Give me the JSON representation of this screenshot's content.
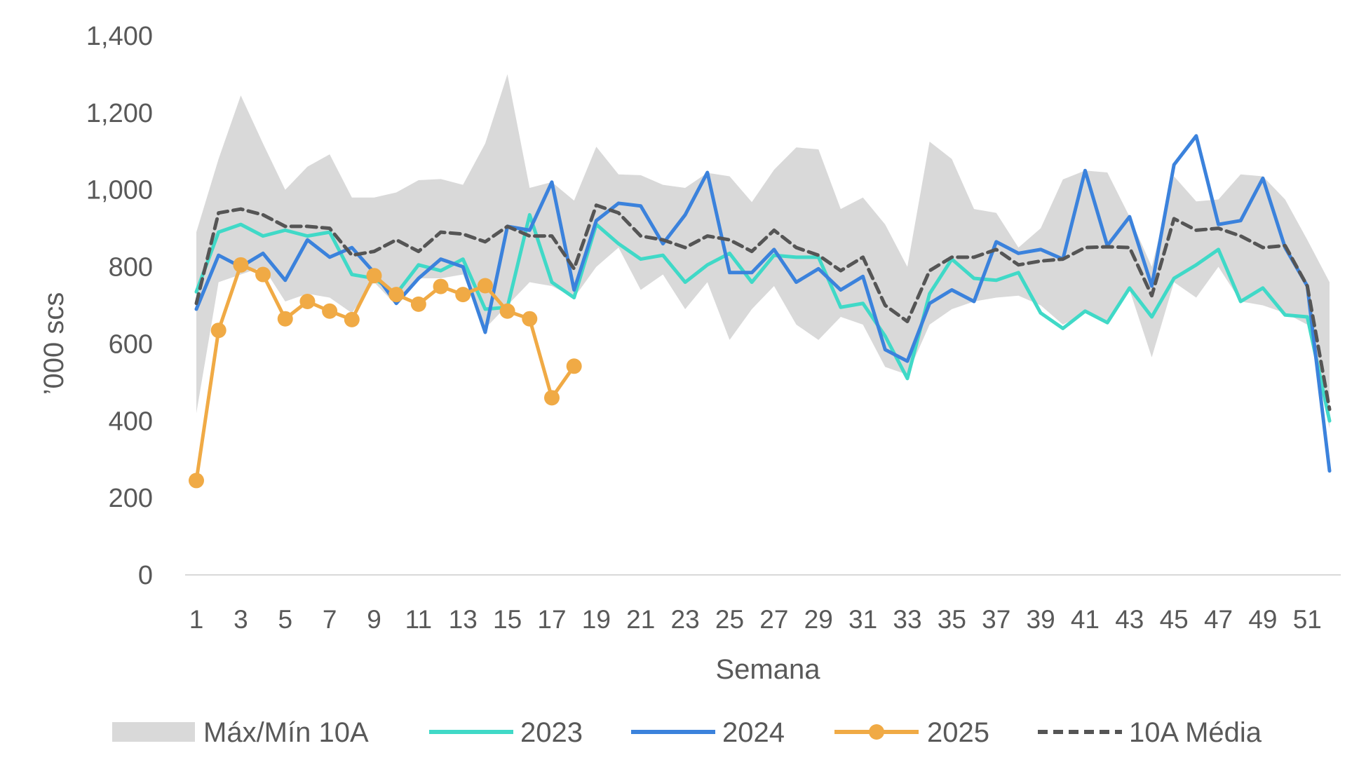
{
  "chart_data": {
    "type": "line",
    "xlabel": "Semana",
    "ylabel": "’000 scs",
    "ylim": [
      0,
      1400
    ],
    "yticks": [
      0,
      200,
      400,
      600,
      800,
      1000,
      1200,
      1400
    ],
    "ytick_labels": [
      "0",
      "200",
      "400",
      "600",
      "800",
      "1,000",
      "1,200",
      "1,400"
    ],
    "xlim": [
      1,
      52
    ],
    "xticks": [
      1,
      3,
      5,
      7,
      9,
      11,
      13,
      15,
      17,
      19,
      21,
      23,
      25,
      27,
      29,
      31,
      33,
      35,
      37,
      39,
      41,
      43,
      45,
      47,
      49,
      51
    ],
    "xtick_labels": [
      "1",
      "3",
      "5",
      "7",
      "9",
      "11",
      "13",
      "15",
      "17",
      "19",
      "21",
      "23",
      "25",
      "27",
      "29",
      "31",
      "33",
      "35",
      "37",
      "39",
      "41",
      "43",
      "45",
      "47",
      "49",
      "51"
    ],
    "grid": false,
    "legend_position": "bottom",
    "band": {
      "name": "Máx/Mín 10A",
      "color": "#d9d9d9",
      "max": [
        890,
        1080,
        1245,
        1120,
        1000,
        1060,
        1092,
        980,
        980,
        993,
        1025,
        1028,
        1013,
        1120,
        1300,
        1005,
        1020,
        972,
        1112,
        1040,
        1038,
        1013,
        1005,
        1044,
        1035,
        968,
        1052,
        1110,
        1105,
        950,
        980,
        910,
        800,
        1125,
        1080,
        950,
        940,
        850,
        900,
        1027,
        1050,
        1045,
        930,
        800,
        1035,
        970,
        975,
        1040,
        1035,
        975,
        870,
        760
      ],
      "min": [
        420,
        760,
        780,
        800,
        710,
        730,
        720,
        680,
        760,
        700,
        770,
        770,
        780,
        640,
        700,
        760,
        750,
        720,
        800,
        850,
        740,
        780,
        690,
        760,
        610,
        690,
        750,
        650,
        610,
        670,
        650,
        540,
        520,
        650,
        690,
        710,
        720,
        725,
        700,
        650,
        680,
        650,
        740,
        565,
        760,
        720,
        800,
        710,
        700,
        680,
        650,
        380
      ]
    },
    "series": [
      {
        "name": "2023",
        "color": "#40d9c7",
        "markers": false,
        "dashed": false,
        "values": [
          735,
          890,
          910,
          880,
          895,
          880,
          890,
          780,
          770,
          730,
          805,
          790,
          820,
          690,
          695,
          935,
          760,
          720,
          910,
          860,
          820,
          830,
          760,
          805,
          835,
          760,
          830,
          825,
          825,
          695,
          705,
          620,
          510,
          730,
          820,
          770,
          765,
          785,
          680,
          640,
          685,
          655,
          745,
          670,
          770,
          805,
          845,
          710,
          745,
          675,
          670,
          400
        ]
      },
      {
        "name": "2024",
        "color": "#3b82dc",
        "markers": false,
        "dashed": false,
        "values": [
          690,
          830,
          800,
          835,
          765,
          870,
          825,
          850,
          785,
          705,
          770,
          820,
          800,
          630,
          905,
          895,
          1020,
          740,
          920,
          965,
          958,
          860,
          935,
          1045,
          785,
          785,
          845,
          760,
          795,
          740,
          775,
          585,
          555,
          705,
          740,
          710,
          865,
          835,
          845,
          820,
          1050,
          855,
          930,
          750,
          1065,
          1140,
          910,
          920,
          1030,
          850,
          750,
          270
        ]
      },
      {
        "name": "2025",
        "color": "#f0aa45",
        "markers": true,
        "dashed": false,
        "values": [
          245,
          635,
          805,
          780,
          665,
          710,
          685,
          663,
          777,
          728,
          703,
          749,
          728,
          751,
          685,
          665,
          460,
          542
        ]
      },
      {
        "name": "10A Média",
        "color": "#555555",
        "markers": false,
        "dashed": true,
        "values": [
          705,
          940,
          950,
          935,
          905,
          905,
          900,
          830,
          840,
          870,
          840,
          890,
          885,
          865,
          905,
          880,
          880,
          795,
          960,
          940,
          880,
          870,
          850,
          880,
          870,
          840,
          895,
          850,
          830,
          790,
          825,
          700,
          658,
          790,
          825,
          825,
          845,
          805,
          815,
          820,
          850,
          852,
          850,
          725,
          925,
          895,
          900,
          880,
          850,
          855,
          750,
          430
        ]
      }
    ]
  }
}
